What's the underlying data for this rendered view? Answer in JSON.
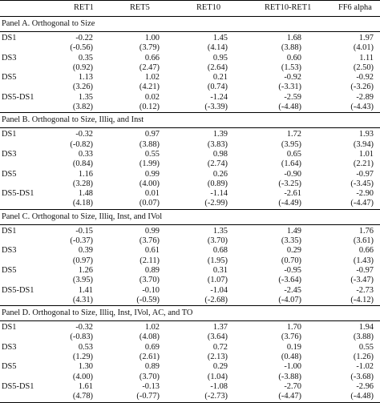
{
  "columns": [
    "",
    "RET1",
    "RET5",
    "RET10",
    "RET10-RET1",
    "FF6 alpha"
  ],
  "panels": [
    {
      "title": "Panel A. Orthogonal to Size",
      "rows": [
        {
          "label": "DS1",
          "coef": [
            "-0.22",
            "1.00",
            "1.45",
            "1.68",
            "1.97"
          ],
          "t": [
            "(-0.56)",
            "(3.79)",
            "(4.14)",
            "(3.88)",
            "(4.01)"
          ]
        },
        {
          "label": "DS3",
          "coef": [
            "0.35",
            "0.66",
            "0.95",
            "0.60",
            "1.11"
          ],
          "t": [
            "(0.92)",
            "(2.47)",
            "(2.64)",
            "(1.53)",
            "(2.50)"
          ]
        },
        {
          "label": "DS5",
          "coef": [
            "1.13",
            "1.02",
            "0.21",
            "-0.92",
            "-0.92"
          ],
          "t": [
            "(3.26)",
            "(4.21)",
            "(0.74)",
            "(-3.31)",
            "(-3.26)"
          ]
        },
        {
          "label": "DS5-DS1",
          "coef": [
            "1.35",
            "0.02",
            "-1.24",
            "-2.59",
            "-2.89"
          ],
          "t": [
            "(3.82)",
            "(0.12)",
            "(-3.39)",
            "(-4.48)",
            "(-4.43)"
          ]
        }
      ]
    },
    {
      "title": "Panel B. Orthogonal to Size, Illiq, and Inst",
      "rows": [
        {
          "label": "DS1",
          "coef": [
            "-0.32",
            "0.97",
            "1.39",
            "1.72",
            "1.93"
          ],
          "t": [
            "(-0.82)",
            "(3.88)",
            "(3.83)",
            "(3.95)",
            "(3.94)"
          ]
        },
        {
          "label": "DS3",
          "coef": [
            "0.33",
            "0.55",
            "0.98",
            "0.65",
            "1.01"
          ],
          "t": [
            "(0.84)",
            "(1.99)",
            "(2.74)",
            "(1.64)",
            "(2.21)"
          ]
        },
        {
          "label": "DS5",
          "coef": [
            "1.16",
            "0.99",
            "0.26",
            "-0.90",
            "-0.97"
          ],
          "t": [
            "(3.28)",
            "(4.00)",
            "(0.89)",
            "(-3.25)",
            "(-3.45)"
          ]
        },
        {
          "label": "DS5-DS1",
          "coef": [
            "1.48",
            "0.01",
            "-1.14",
            "-2.61",
            "-2.90"
          ],
          "t": [
            "(4.18)",
            "(0.07)",
            "(-2.99)",
            "(-4.49)",
            "(-4.47)"
          ]
        }
      ]
    },
    {
      "title": "Panel C. Orthogonal to Size, Illiq, Inst, and IVol",
      "rows": [
        {
          "label": "DS1",
          "coef": [
            "-0.15",
            "0.99",
            "1.35",
            "1.49",
            "1.76"
          ],
          "t": [
            "(-0.37)",
            "(3.76)",
            "(3.70)",
            "(3.35)",
            "(3.61)"
          ]
        },
        {
          "label": "DS3",
          "coef": [
            "0.39",
            "0.61",
            "0.68",
            "0.29",
            "0.66"
          ],
          "t": [
            "(0.97)",
            "(2.11)",
            "(1.95)",
            "(0.70)",
            "(1.43)"
          ]
        },
        {
          "label": "DS5",
          "coef": [
            "1.26",
            "0.89",
            "0.31",
            "-0.95",
            "-0.97"
          ],
          "t": [
            "(3.95)",
            "(3.70)",
            "(1.07)",
            "(-3.64)",
            "(-3.47)"
          ]
        },
        {
          "label": "DS5-DS1",
          "coef": [
            "1.41",
            "-0.10",
            "-1.04",
            "-2.45",
            "-2.73"
          ],
          "t": [
            "(4.31)",
            "(-0.59)",
            "(-2.68)",
            "(-4.07)",
            "(-4.12)"
          ]
        }
      ]
    },
    {
      "title": "Panel D. Orthogonal to Size, Illiq, Inst, IVol, AC, and TO",
      "rows": [
        {
          "label": "DS1",
          "coef": [
            "-0.32",
            "1.02",
            "1.37",
            "1.70",
            "1.94"
          ],
          "t": [
            "(-0.83)",
            "(4.08)",
            "(3.64)",
            "(3.76)",
            "(3.88)"
          ]
        },
        {
          "label": "DS3",
          "coef": [
            "0.53",
            "0.69",
            "0.72",
            "0.19",
            "0.55"
          ],
          "t": [
            "(1.29)",
            "(2.61)",
            "(2.13)",
            "(0.48)",
            "(1.26)"
          ]
        },
        {
          "label": "DS5",
          "coef": [
            "1.30",
            "0.89",
            "0.29",
            "-1.00",
            "-1.02"
          ],
          "t": [
            "(4.00)",
            "(3.70)",
            "(1.04)",
            "(-3.88)",
            "(-3.68)"
          ]
        },
        {
          "label": "DS5-DS1",
          "coef": [
            "1.61",
            "-0.13",
            "-1.08",
            "-2.70",
            "-2.96"
          ],
          "t": [
            "(4.78)",
            "(-0.77)",
            "(-2.73)",
            "(-4.47)",
            "(-4.48)"
          ]
        }
      ]
    }
  ]
}
